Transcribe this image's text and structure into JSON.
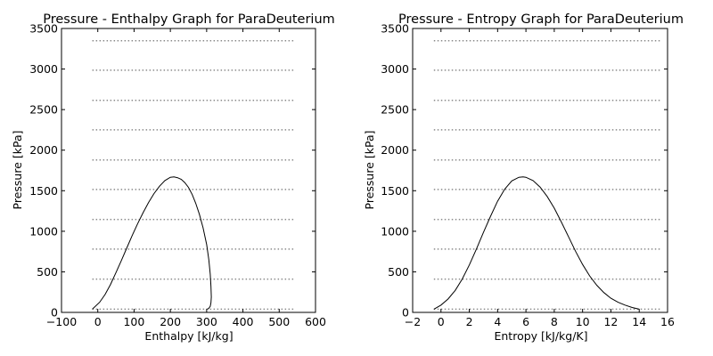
{
  "chart_data": [
    {
      "type": "line",
      "title": "Pressure - Enthalpy Graph for ParaDeuterium",
      "xlabel": "Enthalpy [kJ/kg]",
      "ylabel": "Pressure [kPa]",
      "xlim": [
        -100,
        600
      ],
      "ylim": [
        0,
        3500
      ],
      "xticks": [
        -100,
        0,
        100,
        200,
        300,
        400,
        500,
        600
      ],
      "xtick_labels": [
        "−100",
        "0",
        "100",
        "200",
        "300",
        "400",
        "500",
        "600"
      ],
      "yticks": [
        0,
        500,
        1000,
        1500,
        2000,
        2500,
        3000,
        3500
      ],
      "ytick_labels": [
        "0",
        "500",
        "1000",
        "1500",
        "2000",
        "2500",
        "3000",
        "3500"
      ],
      "grid": false,
      "isobars": {
        "pressures": [
          40,
          410,
          780,
          1145,
          1515,
          1880,
          2250,
          2615,
          2985,
          3350
        ],
        "x_range": [
          -15,
          545
        ]
      },
      "saturation_curve": {
        "x": [
          -15,
          5,
          20,
          35,
          50,
          65,
          80,
          95,
          110,
          125,
          140,
          155,
          170,
          185,
          200,
          210,
          220,
          230,
          240,
          250,
          260,
          270,
          280,
          290,
          300,
          306,
          310,
          312,
          313,
          312,
          310,
          306,
          302
        ],
        "y": [
          40,
          125,
          220,
          345,
          490,
          640,
          795,
          950,
          1095,
          1230,
          1355,
          1465,
          1555,
          1625,
          1665,
          1670,
          1660,
          1640,
          1600,
          1540,
          1455,
          1345,
          1210,
          1045,
          835,
          650,
          470,
          320,
          190,
          120,
          75,
          50,
          40
        ]
      }
    },
    {
      "type": "line",
      "title": "Pressure - Entropy Graph for ParaDeuterium",
      "xlabel": "Entropy [kJ/kg/K]",
      "ylabel": "Pressure [kPa]",
      "xlim": [
        -2,
        16
      ],
      "ylim": [
        0,
        3500
      ],
      "xticks": [
        -2,
        0,
        2,
        4,
        6,
        8,
        10,
        12,
        14,
        16
      ],
      "xtick_labels": [
        "−2",
        "0",
        "2",
        "4",
        "6",
        "8",
        "10",
        "12",
        "14",
        "16"
      ],
      "yticks": [
        0,
        500,
        1000,
        1500,
        2000,
        2500,
        3000,
        3500
      ],
      "ytick_labels": [
        "0",
        "500",
        "1000",
        "1500",
        "2000",
        "2500",
        "3000",
        "3500"
      ],
      "grid": false,
      "isobars": {
        "pressures": [
          40,
          410,
          780,
          1145,
          1515,
          1880,
          2250,
          2615,
          2985,
          3350
        ],
        "x_range": [
          -0.5,
          15.5
        ]
      },
      "saturation_curve": {
        "x": [
          -0.5,
          0.0,
          0.5,
          1.0,
          1.5,
          2.0,
          2.5,
          3.0,
          3.5,
          4.0,
          4.5,
          5.0,
          5.5,
          5.8,
          6.0,
          6.5,
          7.0,
          7.5,
          8.0,
          8.5,
          9.0,
          9.5,
          10.0,
          10.5,
          11.0,
          11.5,
          12.0,
          12.5,
          13.0,
          13.5,
          14.0
        ],
        "y": [
          40,
          90,
          165,
          270,
          410,
          585,
          780,
          985,
          1185,
          1370,
          1520,
          1620,
          1665,
          1670,
          1665,
          1625,
          1545,
          1430,
          1285,
          1115,
          935,
          755,
          590,
          450,
          335,
          245,
          175,
          125,
          90,
          60,
          40
        ]
      }
    }
  ]
}
